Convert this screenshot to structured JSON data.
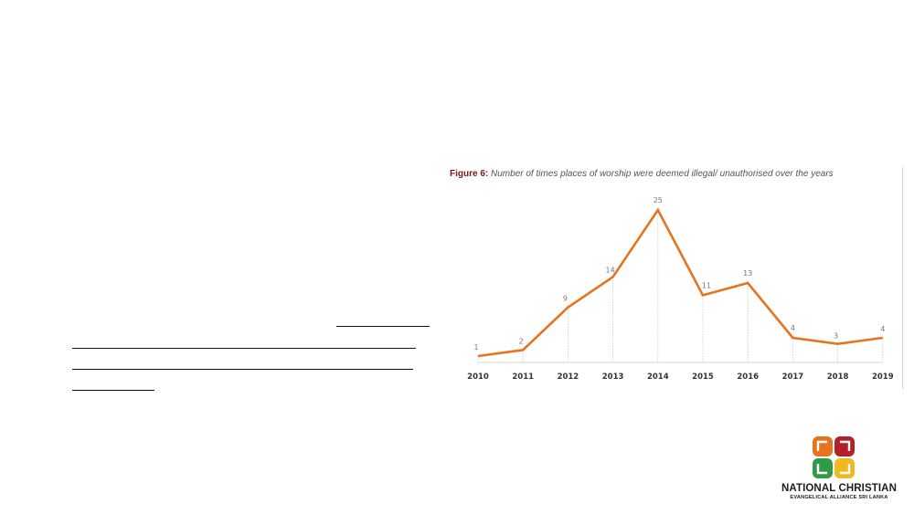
{
  "figure": {
    "label": "Figure 6:",
    "caption": "Number of times places of worship were deemed illegal/ unauthorised over the years"
  },
  "chart_data": {
    "type": "line",
    "title": "",
    "xlabel": "",
    "ylabel": "",
    "categories": [
      "2010",
      "2011",
      "2012",
      "2013",
      "2014",
      "2015",
      "2016",
      "2017",
      "2018",
      "2019"
    ],
    "values": [
      1,
      2,
      9,
      14,
      25,
      11,
      13,
      4,
      3,
      4
    ],
    "ylim": [
      0,
      25
    ],
    "grid": false,
    "legend": "none",
    "line_color": "#e8731f"
  },
  "logo": {
    "name": "NATIONAL CHRISTIAN",
    "subtitle": "EVANGELICAL ALLIANCE SRI LANKA",
    "colors": {
      "top_left": "#e8731f",
      "top_right": "#b3202a",
      "bottom_left": "#2f9b46",
      "bottom_right": "#f2b820"
    }
  }
}
